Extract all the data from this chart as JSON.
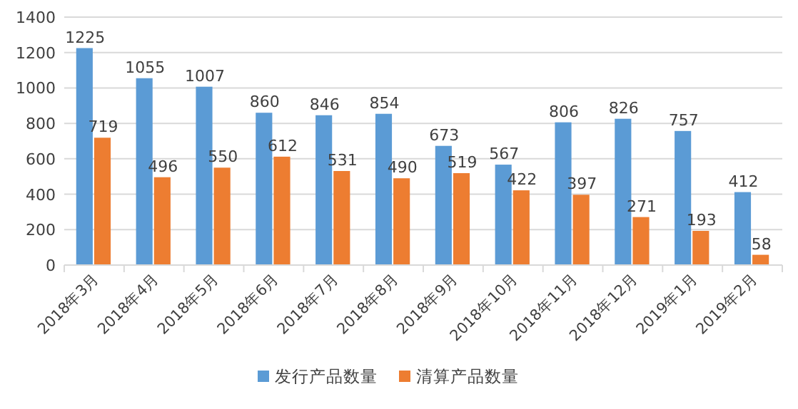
{
  "chart_data": {
    "type": "bar",
    "categories": [
      "2018年3月",
      "2018年4月",
      "2018年5月",
      "2018年6月",
      "2018年7月",
      "2018年8月",
      "2018年9月",
      "2018年10月",
      "2018年11月",
      "2018年12月",
      "2019年1月",
      "2019年2月"
    ],
    "series": [
      {
        "name": "发行产品数量",
        "color": "#5b9bd5",
        "values": [
          1225,
          1055,
          1007,
          860,
          846,
          854,
          673,
          567,
          806,
          826,
          757,
          412
        ]
      },
      {
        "name": "清算产品数量",
        "color": "#ed7d31",
        "values": [
          719,
          496,
          550,
          612,
          531,
          490,
          519,
          422,
          397,
          271,
          193,
          58
        ]
      }
    ],
    "ylim": [
      0,
      1400
    ],
    "yticks": [
      0,
      200,
      400,
      600,
      800,
      1000,
      1200,
      1400
    ],
    "grid": "y",
    "legend": "bottom",
    "data_labels": true
  }
}
